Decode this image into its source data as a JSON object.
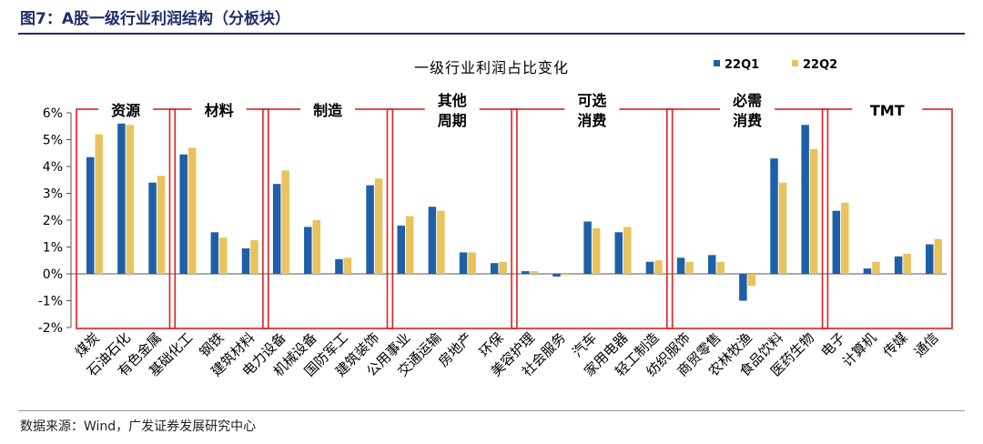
{
  "figure_title": "图7：A股一级行业利润结构（分板块）",
  "source": "数据来源：Wind，广发证券发展研究中心",
  "colors": {
    "series1": "#1f5fa8",
    "series2": "#e8c35e",
    "group_box": "#e02020",
    "title_rule": "#1f2d6b"
  },
  "chart_data": {
    "type": "bar",
    "title": "一级行业利润占比变化",
    "ylim": [
      -2,
      6
    ],
    "yticks": [
      -2,
      -1,
      0,
      1,
      2,
      3,
      4,
      5,
      6
    ],
    "ytick_labels": [
      "-2%",
      "-1%",
      "0%",
      "1%",
      "2%",
      "3%",
      "4%",
      "5%",
      "6%"
    ],
    "legend_position": "top-right",
    "categories": [
      "煤炭",
      "石油石化",
      "有色金属",
      "基础化工",
      "钢铁",
      "建筑材料",
      "电力设备",
      "机械设备",
      "国防军工",
      "建筑装饰",
      "公用事业",
      "交通运输",
      "房地产",
      "环保",
      "美容护理",
      "社会服务",
      "汽车",
      "家用电器",
      "轻工制造",
      "纺织服饰",
      "商贸零售",
      "农林牧渔",
      "食品饮料",
      "医药生物",
      "电子",
      "计算机",
      "传媒",
      "通信"
    ],
    "series": [
      {
        "name": "22Q1",
        "values": [
          4.35,
          5.6,
          3.4,
          4.45,
          1.55,
          0.95,
          3.35,
          1.75,
          0.55,
          3.3,
          1.8,
          2.5,
          0.8,
          0.4,
          0.1,
          -0.1,
          1.95,
          1.55,
          0.45,
          0.6,
          0.7,
          -1.0,
          4.3,
          5.55,
          2.35,
          0.2,
          0.65,
          1.1
        ]
      },
      {
        "name": "22Q2",
        "values": [
          5.2,
          5.55,
          3.65,
          4.7,
          1.35,
          1.25,
          3.85,
          2.0,
          0.6,
          3.55,
          2.15,
          2.35,
          0.8,
          0.45,
          0.1,
          -0.05,
          1.7,
          1.75,
          0.5,
          0.45,
          0.45,
          -0.45,
          3.4,
          4.65,
          2.65,
          0.45,
          0.75,
          1.3
        ]
      }
    ],
    "groups": [
      {
        "label": [
          "资源"
        ],
        "count": 3
      },
      {
        "label": [
          "材料"
        ],
        "count": 3
      },
      {
        "label": [
          "制造"
        ],
        "count": 4
      },
      {
        "label": [
          "其他",
          "周期"
        ],
        "count": 4
      },
      {
        "label": [
          "可选",
          "消费"
        ],
        "count": 5
      },
      {
        "label": [
          "必需",
          "消费"
        ],
        "count": 5
      },
      {
        "label": [
          "TMT"
        ],
        "count": 4
      }
    ]
  }
}
